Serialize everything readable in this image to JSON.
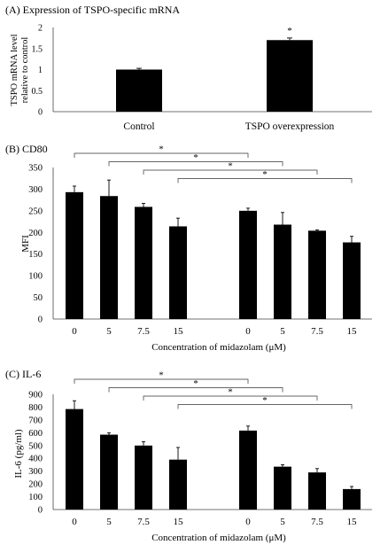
{
  "chart_data": [
    {
      "type": "bar",
      "title": "(A) Expression of TSPO-specific mRNA",
      "ylabel": "TSPO mRNA level relative to control",
      "ylabel_lines": [
        "TSPO mRNA level",
        "relative to control"
      ],
      "xlabel": "",
      "ylim": [
        0,
        2
      ],
      "yticks": [
        "0",
        "0.5",
        "1",
        "1.5",
        "2"
      ],
      "grid": false,
      "categories": [
        "Control",
        "TSPO overexpression"
      ],
      "values": [
        1.0,
        1.7
      ],
      "errors": [
        0.03,
        0.05
      ],
      "annotations": [
        "",
        "*"
      ],
      "bar_color": "#000000"
    },
    {
      "type": "bar",
      "title": "(B) CD80",
      "ylabel": "MFI",
      "xlabel": "Concentration of midazolam (μM)",
      "ylim": [
        0,
        350
      ],
      "yticks": [
        "0",
        "50",
        "100",
        "150",
        "200",
        "250",
        "300",
        "350"
      ],
      "grid": false,
      "categories": [
        "0",
        "5",
        "7.5",
        "15",
        "0",
        "5",
        "7.5",
        "15"
      ],
      "values": [
        293,
        284,
        259,
        214,
        250,
        218,
        204,
        177
      ],
      "errors": [
        14,
        37,
        8,
        19,
        6,
        28,
        2,
        14
      ],
      "significance": [
        {
          "from": 0,
          "to": 4,
          "label": "*"
        },
        {
          "from": 1,
          "to": 5,
          "label": "*"
        },
        {
          "from": 2,
          "to": 6,
          "label": "*"
        },
        {
          "from": 3,
          "to": 7,
          "label": "*"
        }
      ],
      "bar_color": "#000000"
    },
    {
      "type": "bar",
      "title": "(C) IL-6",
      "ylabel": "IL-6 (pg/ml)",
      "xlabel": "Concentration of midazolam (μM)",
      "ylim": [
        0,
        900
      ],
      "yticks": [
        "0",
        "100",
        "200",
        "300",
        "400",
        "500",
        "600",
        "700",
        "800",
        "900"
      ],
      "grid": false,
      "categories": [
        "0",
        "5",
        "7.5",
        "15",
        "0",
        "5",
        "7.5",
        "15"
      ],
      "values": [
        785,
        585,
        500,
        390,
        617,
        335,
        290,
        160
      ],
      "errors": [
        65,
        15,
        30,
        95,
        35,
        15,
        30,
        20
      ],
      "significance": [
        {
          "from": 0,
          "to": 4,
          "label": "*"
        },
        {
          "from": 1,
          "to": 5,
          "label": "*"
        },
        {
          "from": 2,
          "to": 6,
          "label": "*"
        },
        {
          "from": 3,
          "to": 7,
          "label": "*"
        }
      ],
      "bar_color": "#000000"
    }
  ]
}
